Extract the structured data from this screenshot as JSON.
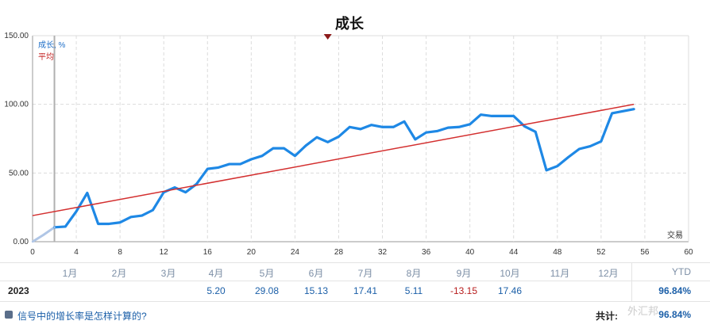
{
  "chart_data": {
    "type": "line",
    "title": "成长",
    "legend": {
      "growth": "成长, %",
      "average": "平均"
    },
    "xlabel": "交易",
    "xlim": [
      0,
      60
    ],
    "ylim": [
      0,
      150
    ],
    "x_ticks": [
      0,
      4,
      8,
      12,
      16,
      20,
      24,
      28,
      32,
      36,
      40,
      44,
      48,
      52,
      56,
      60
    ],
    "y_ticks": [
      "0.00",
      "50.00",
      "100.00",
      "150.00"
    ],
    "grid": true,
    "colors": {
      "growth": "#1e88e5",
      "growth_start": "#b0c6e6",
      "average": "#d32f2f",
      "marker": "#8b1a1a"
    },
    "series": [
      {
        "name": "成长, %",
        "x": [
          0,
          1,
          2,
          3,
          4,
          5,
          6,
          7,
          8,
          9,
          10,
          11,
          12,
          13,
          14,
          15,
          16,
          17,
          18,
          19,
          20,
          21,
          22,
          23,
          24,
          25,
          26,
          27,
          28,
          29,
          30,
          31,
          32,
          33,
          34,
          35,
          36,
          37,
          38,
          39,
          40,
          41,
          42,
          43,
          44,
          45,
          46,
          47,
          48,
          49,
          50,
          51,
          52,
          53,
          54,
          55
        ],
        "y": [
          0,
          5,
          10.5,
          11,
          22,
          35.5,
          13,
          13,
          14,
          18,
          19,
          23,
          36,
          39.5,
          36,
          42,
          53,
          54,
          56.5,
          56.5,
          60,
          62.5,
          68,
          68,
          62.5,
          70,
          76,
          72.5,
          76.5,
          83.5,
          82,
          85,
          83.5,
          83.5,
          87.5,
          74.5,
          79.5,
          80.5,
          83,
          83.5,
          85.5,
          92.5,
          91.5,
          91.5,
          91.5,
          84,
          80,
          52,
          55,
          61.5,
          67.5,
          69.5,
          73,
          93.5,
          95,
          96.5
        ]
      },
      {
        "name": "平均",
        "x": [
          0,
          55
        ],
        "y": [
          19,
          100
        ]
      }
    ],
    "marker_trade": 27,
    "start_marker_trade": 2
  },
  "months": [
    "1月",
    "2月",
    "3月",
    "4月",
    "5月",
    "6月",
    "7月",
    "8月",
    "9月",
    "10月",
    "11月",
    "12月"
  ],
  "ytd_label": "YTD",
  "year_row": {
    "year": "2023",
    "values": [
      "",
      "",
      "",
      "5.20",
      "29.08",
      "15.13",
      "17.41",
      "5.11",
      "-13.15",
      "17.46",
      "",
      ""
    ],
    "ytd": "96.84%"
  },
  "footer": {
    "help_link": "信号中的增长率是怎样计算的?",
    "total_label": "共计:",
    "total_value": "96.84%"
  },
  "watermark": "外汇邦"
}
